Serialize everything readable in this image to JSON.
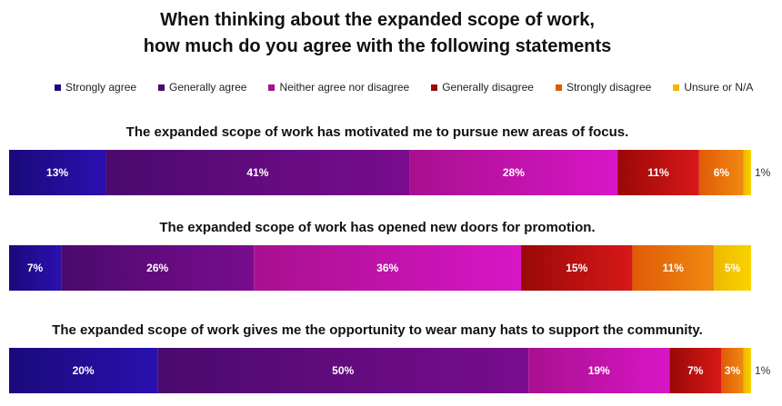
{
  "chart_data": {
    "type": "bar",
    "orientation": "horizontal-stacked",
    "title_line1": "When thinking about the expanded scope of work,",
    "title_line2": "how much do you agree with the following statements",
    "legend_placement": "top",
    "grid": false,
    "series": [
      {
        "name": "Strongly agree",
        "color": "#1a0a7a",
        "color2": "#2a10b0"
      },
      {
        "name": "Generally agree",
        "color": "#4a0a6e",
        "color2": "#7a0c8e"
      },
      {
        "name": "Neither agree nor disagree",
        "color": "#a8108f",
        "color2": "#d816c6"
      },
      {
        "name": "Generally disagree",
        "color": "#9a0808",
        "color2": "#d81818"
      },
      {
        "name": "Strongly disagree",
        "color": "#e05a08",
        "color2": "#f08a10"
      },
      {
        "name": "Unsure or N/A",
        "color": "#f0b800",
        "color2": "#f8d400"
      }
    ],
    "categories": [
      "The expanded scope of work has motivated me to pursue new areas of focus.",
      "The expanded scope of work has opened new doors for promotion.",
      "The expanded scope of work gives me the opportunity to wear many hats to support the community."
    ],
    "values": [
      [
        13,
        41,
        28,
        11,
        6,
        1
      ],
      [
        7,
        26,
        36,
        15,
        11,
        5
      ],
      [
        20,
        50,
        19,
        7,
        3,
        1
      ]
    ],
    "labels": [
      [
        "13%",
        "41%",
        "28%",
        "11%",
        "6%",
        "1%"
      ],
      [
        "7%",
        "26%",
        "36%",
        "15%",
        "11%",
        "5%"
      ],
      [
        "20%",
        "50%",
        "19%",
        "7%",
        "3%",
        "1%"
      ]
    ],
    "outside_label_min": 2
  }
}
